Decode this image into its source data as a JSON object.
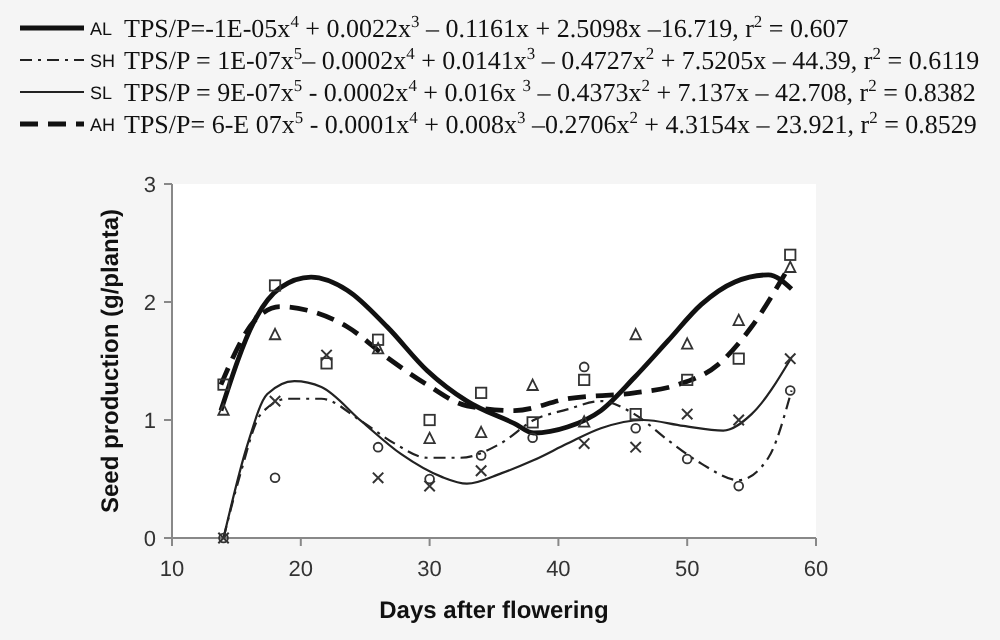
{
  "chart_data": {
    "type": "scatter",
    "xlabel": "Days after flowering",
    "ylabel": "Seed production (g/planta)",
    "xlim": [
      10,
      60
    ],
    "xticks": [
      10,
      20,
      30,
      40,
      50,
      60
    ],
    "ylim": [
      0,
      3
    ],
    "yticks": [
      0,
      1,
      2,
      3
    ],
    "grid": false,
    "legend": "top",
    "annotations": [
      "TPS/P=-1E-05x$^{4}$ + 0.0022x$^{3}$ – 0.1161x + 2.5098x –16.719, r$^{2}$ = 0.607",
      "TPS/P = 1E-07x$^{5}$– 0.0002x$^{4}$ + 0.0141x$^{3}$ – 0.4727x$^{2}$ + 7.5205x – 44.39, r$^{2}$ = 0.6119",
      "TPS/P = 9E-07x$^{5}$ - 0.0002x$^{4}$ + 0.016x $^{3}$ – 0.4373x$^{2}$ + 7.137x – 42.708, r$^{2}$ = 0.8382",
      "TPS/P= 6-E 07x$^{5}$ - 0.0001x$^{4}$ + 0.008x$^{3}$ –0.2706x$^{2}$ + 4.3154x – 23.921, r$^{2}$ = 0.8529"
    ],
    "series": [
      {
        "name": "AL",
        "type": "line",
        "color": "#111111",
        "line_style": "solid",
        "marker": "none",
        "x": [
          13.8,
          16.4,
          18.4,
          20.8,
          23.6,
          26.7,
          29.8,
          32.9,
          36.6,
          38.1,
          40.7,
          43.3,
          45.9,
          48.5,
          51.1,
          53.7,
          56.3,
          58.1
        ],
        "values": [
          1.08,
          1.84,
          2.12,
          2.21,
          2.1,
          1.79,
          1.42,
          1.16,
          0.97,
          0.89,
          0.94,
          1.08,
          1.36,
          1.67,
          1.98,
          2.17,
          2.23,
          2.11
        ]
      },
      {
        "name": "SH",
        "type": "line",
        "color": "#222222",
        "line_style": "dashdot",
        "marker": "none",
        "x": [
          14,
          15.3,
          16.9,
          19,
          21.6,
          24.7,
          27.3,
          29.8,
          32.4,
          35.5,
          38.1,
          40.7,
          43.3,
          45.9,
          48.5,
          51.1,
          54,
          56.3,
          58.1
        ],
        "values": [
          0,
          0.54,
          1.05,
          1.18,
          1.18,
          0.99,
          0.8,
          0.68,
          0.68,
          0.8,
          1.0,
          1.09,
          1.16,
          1.05,
          0.83,
          0.63,
          0.49,
          0.68,
          1.25
        ]
      },
      {
        "name": "SL",
        "type": "line",
        "color": "#222222",
        "line_style": "solid",
        "marker": "none",
        "x": [
          14,
          15.8,
          17.4,
          19.5,
          21.6,
          24.7,
          27.8,
          30.9,
          32.9,
          35.6,
          38.1,
          40.7,
          43.3,
          46.6,
          49.7,
          52.8,
          55,
          58.1
        ],
        "values": [
          0,
          0.77,
          1.22,
          1.33,
          1.28,
          0.99,
          0.71,
          0.52,
          0.46,
          0.55,
          0.66,
          0.8,
          0.93,
          1.0,
          0.95,
          0.91,
          1.05,
          1.53
        ]
      },
      {
        "name": "AH",
        "type": "line",
        "color": "#111111",
        "line_style": "dashed",
        "marker": "none",
        "x": [
          13.8,
          16.4,
          18.4,
          20.5,
          23.6,
          26.7,
          29.8,
          32.9,
          36.6,
          40.7,
          45.9,
          49.3,
          52.4,
          55,
          57.6
        ],
        "values": [
          1.3,
          1.84,
          1.96,
          1.93,
          1.79,
          1.53,
          1.3,
          1.12,
          1.08,
          1.18,
          1.23,
          1.3,
          1.47,
          1.79,
          2.24
        ]
      },
      {
        "color": "#333333",
        "marker": "triangle",
        "x": [
          14,
          18,
          22,
          26,
          30,
          34,
          38,
          42,
          46,
          50,
          54,
          58
        ],
        "values": [
          1.08,
          1.72,
          null,
          1.6,
          0.84,
          0.89,
          1.29,
          0.98,
          1.72,
          1.64,
          1.84,
          2.29
        ]
      },
      {
        "color": "#333333",
        "marker": "square",
        "x": [
          14,
          18,
          22,
          26,
          30,
          34,
          38,
          42,
          46,
          50,
          54,
          58
        ],
        "values": [
          1.3,
          2.14,
          1.48,
          1.68,
          1.0,
          1.23,
          0.98,
          1.34,
          1.05,
          1.34,
          1.52,
          2.4
        ]
      },
      {
        "color": "#333333",
        "marker": "circle",
        "x": [
          14,
          18,
          26,
          30,
          34,
          38,
          42,
          46,
          50,
          54,
          58
        ],
        "values": [
          0,
          0.51,
          0.77,
          0.5,
          0.7,
          0.85,
          1.45,
          0.93,
          0.67,
          0.44,
          1.25
        ]
      },
      {
        "color": "#333333",
        "marker": "cross",
        "x": [
          14,
          18,
          22,
          26,
          30,
          34,
          42,
          46,
          50,
          54,
          58
        ],
        "values": [
          0,
          1.16,
          1.55,
          0.51,
          0.44,
          0.57,
          0.8,
          0.77,
          1.05,
          1.0,
          1.52
        ]
      }
    ]
  }
}
